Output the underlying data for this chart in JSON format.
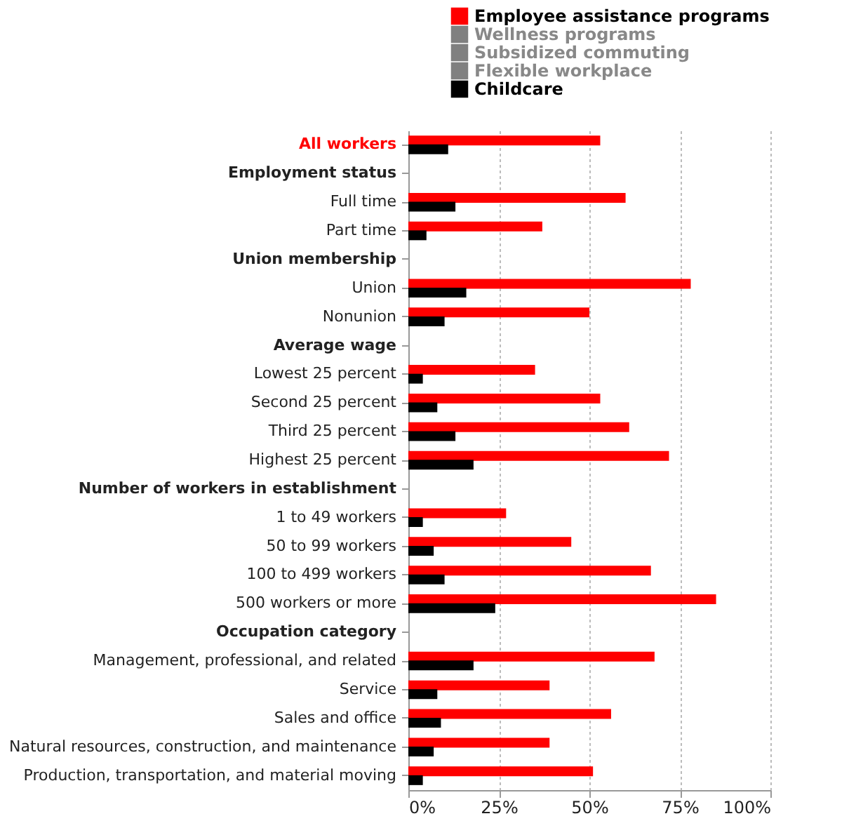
{
  "chart_data": {
    "type": "bar",
    "orientation": "horizontal",
    "categories": [
      "All workers",
      "Employment status",
      "Full time",
      "Part time",
      "Union membership",
      "Union",
      "Nonunion",
      "Average wage",
      "Lowest 25 percent",
      "Second 25 percent",
      "Third 25 percent",
      "Highest 25 percent",
      "Number of workers in establishment",
      "1 to 49 workers",
      "50 to 99 workers",
      "100 to 499 workers",
      "500 workers or more",
      "Occupation category",
      "Management, professional, and related",
      "Service",
      "Sales and office",
      "Natural resources, construction, and maintenance",
      "Production, transportation, and material moving"
    ],
    "series": [
      {
        "name": "Employee assistance programs",
        "color": "#ff0000",
        "values": [
          53,
          null,
          60,
          37,
          null,
          78,
          50,
          null,
          35,
          53,
          61,
          72,
          null,
          27,
          45,
          67,
          85,
          null,
          68,
          39,
          56,
          39,
          51
        ]
      },
      {
        "name": "Wellness programs",
        "color": "#808080",
        "values": [
          null,
          null,
          null,
          null,
          null,
          null,
          null,
          null,
          null,
          null,
          null,
          null,
          null,
          null,
          null,
          null,
          null,
          null,
          null,
          null,
          null,
          null,
          null
        ]
      },
      {
        "name": "Subsidized commuting",
        "color": "#808080",
        "values": [
          null,
          null,
          null,
          null,
          null,
          null,
          null,
          null,
          null,
          null,
          null,
          null,
          null,
          null,
          null,
          null,
          null,
          null,
          null,
          null,
          null,
          null,
          null
        ]
      },
      {
        "name": "Flexible workplace",
        "color": "#808080",
        "values": [
          null,
          null,
          null,
          null,
          null,
          null,
          null,
          null,
          null,
          null,
          null,
          null,
          null,
          null,
          null,
          null,
          null,
          null,
          null,
          null,
          null,
          null,
          null
        ]
      },
      {
        "name": "Childcare",
        "color": "#000000",
        "values": [
          11,
          null,
          13,
          5,
          null,
          16,
          10,
          null,
          4,
          8,
          13,
          18,
          null,
          4,
          7,
          10,
          24,
          null,
          18,
          8,
          9,
          7,
          4
        ]
      }
    ],
    "xlim": [
      0,
      100
    ],
    "xticks": [
      {
        "value": 0,
        "label": "0%"
      },
      {
        "value": 25,
        "label": "25%"
      },
      {
        "value": 50,
        "label": "50%"
      },
      {
        "value": 75,
        "label": "75%"
      },
      {
        "value": 100,
        "label": "100%"
      }
    ],
    "grid": "x",
    "legend": "top right"
  }
}
